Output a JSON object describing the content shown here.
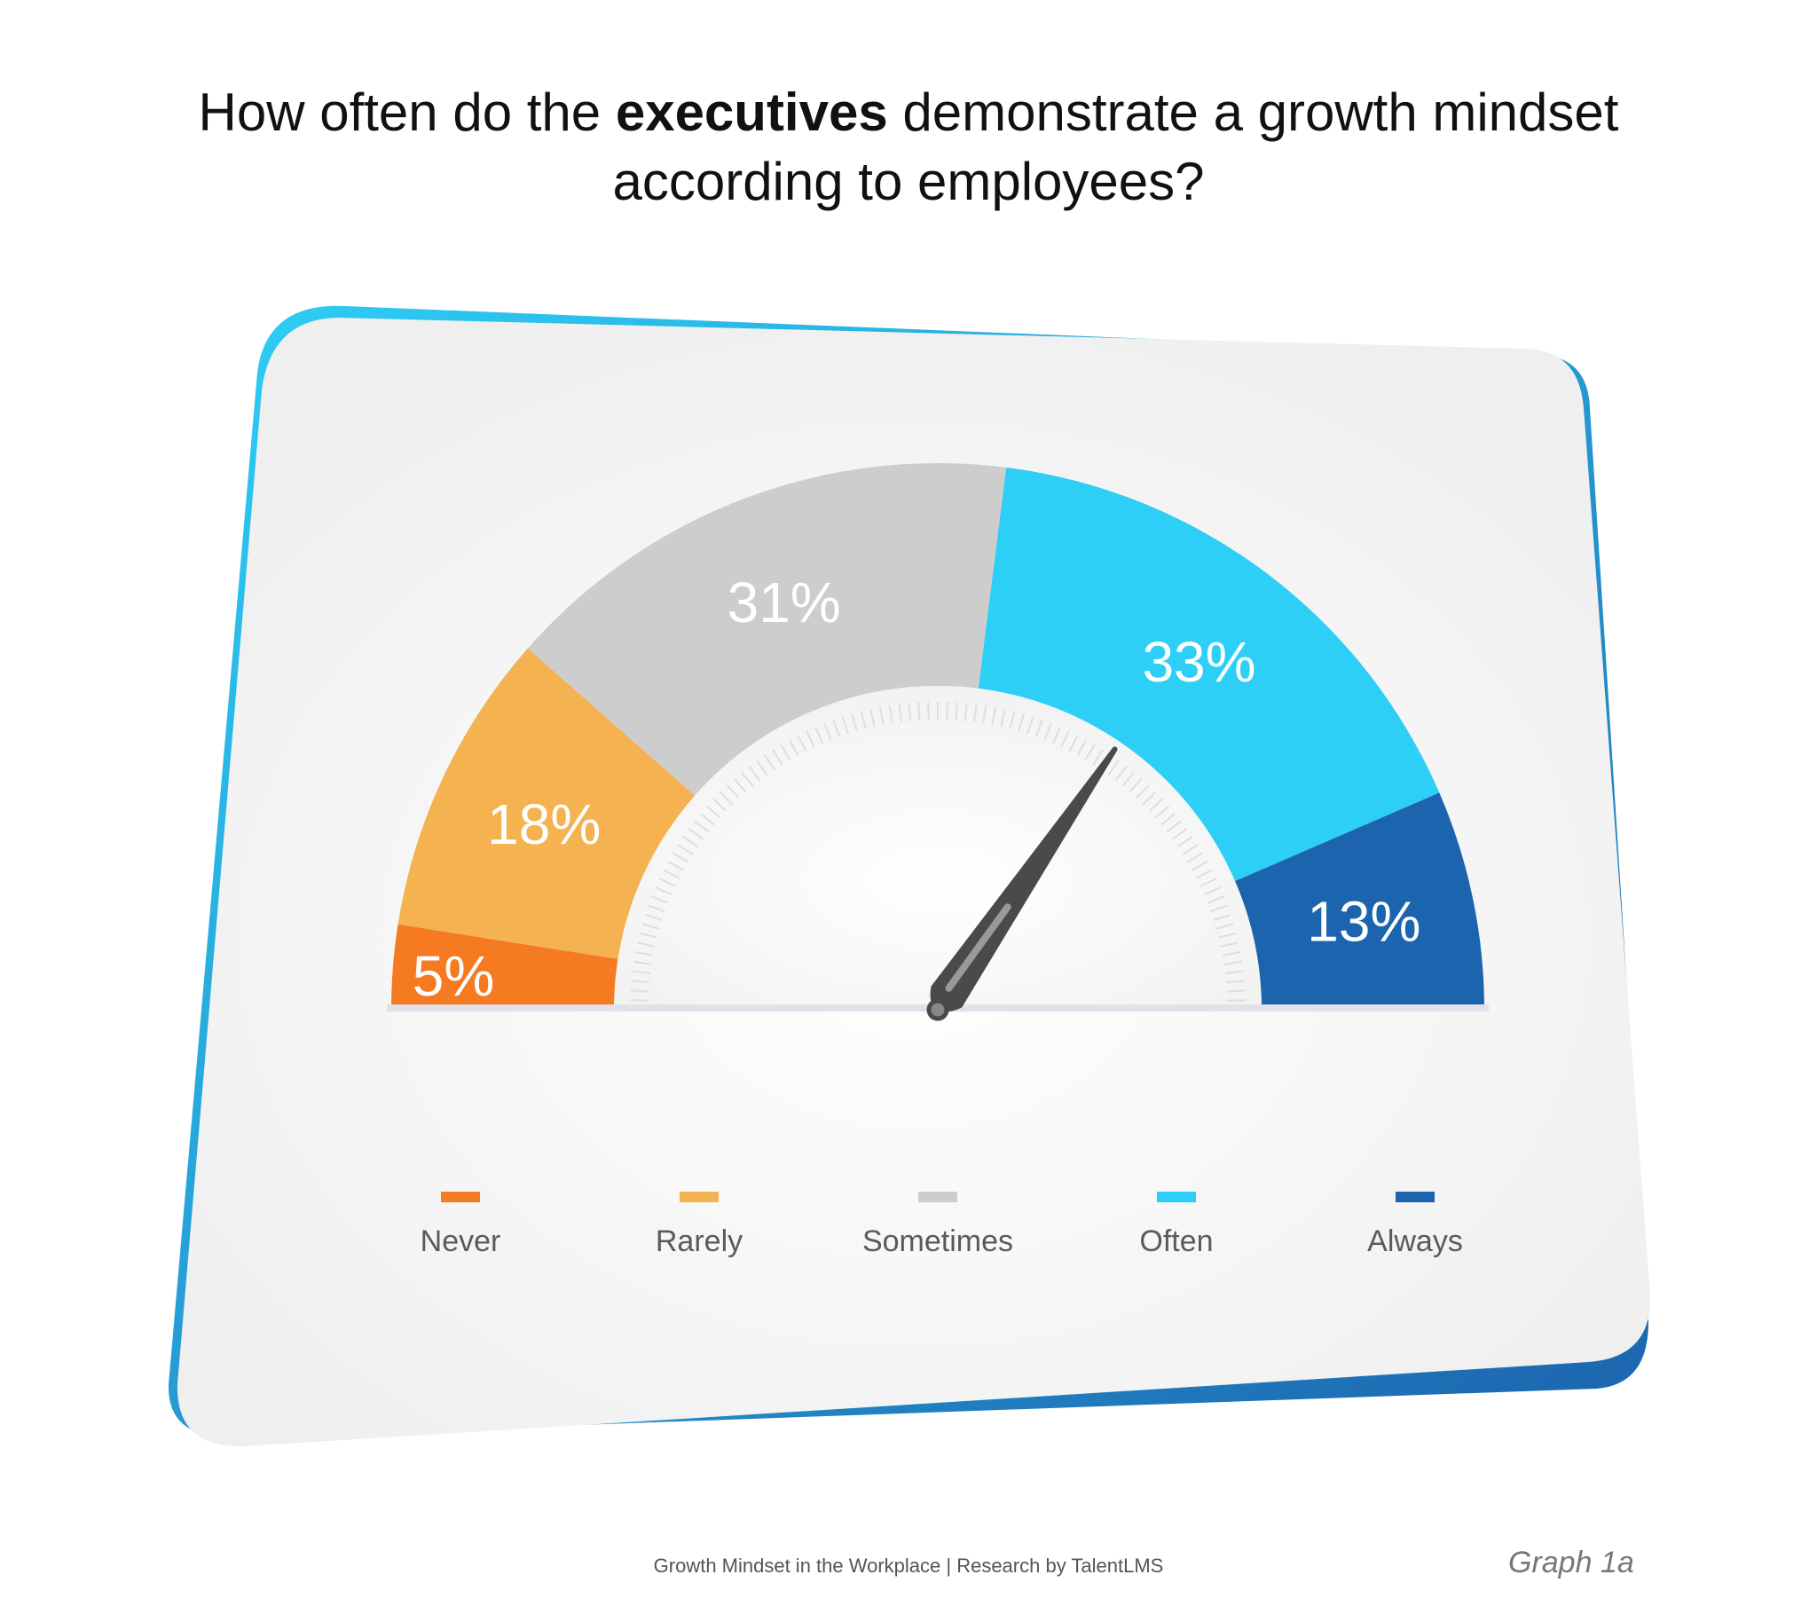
{
  "title": {
    "part1": "How often do the ",
    "bold": "executives",
    "part2": " demonstrate a growth mindset",
    "line2": "according to employees?"
  },
  "footer": "Growth Mindset in the Workplace | Research by TalentLMS",
  "graph_label": "Graph 1a",
  "chart_data": {
    "type": "gauge",
    "title": "How often do the executives demonstrate a growth mindset according to employees?",
    "categories": [
      "Never",
      "Rarely",
      "Sometimes",
      "Often",
      "Always"
    ],
    "values": [
      5,
      18,
      31,
      33,
      13
    ],
    "data_labels": [
      "5%",
      "18%",
      "31%",
      "33%",
      "13%"
    ],
    "colors": [
      "#F57A22",
      "#F4B250",
      "#CDCDCD",
      "#2ECFF6",
      "#1C64AE"
    ],
    "legend_placement": "bottom",
    "needle_value": 69
  }
}
